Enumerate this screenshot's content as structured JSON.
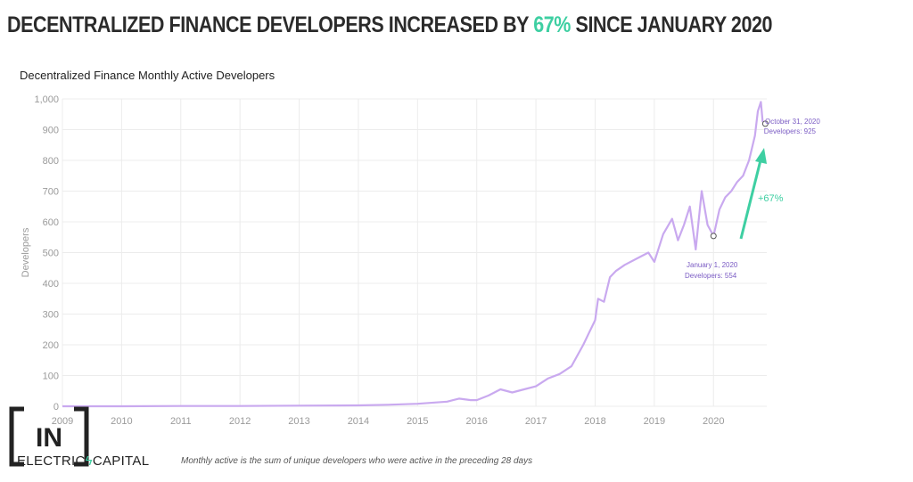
{
  "headline": {
    "prefix": "DECENTRALIZED FINANCE DEVELOPERS INCREASED BY ",
    "highlight": "67%",
    "suffix": " SINCE JANUARY 2020"
  },
  "colors": {
    "line": "#c9a9ef",
    "accent": "#3ecfa2",
    "annotation": "#7b5cc4"
  },
  "chart_data": {
    "type": "line",
    "title": "Decentralized Finance Monthly Active Developers",
    "xlabel": "",
    "ylabel": "Developers",
    "ylim": [
      0,
      1000
    ],
    "xlim": [
      2009,
      2020.9
    ],
    "grid": true,
    "y_ticks": [
      "0",
      "100",
      "200",
      "300",
      "400",
      "500",
      "600",
      "700",
      "800",
      "900",
      "1,000"
    ],
    "x_ticks": [
      "2009",
      "2010",
      "2011",
      "2012",
      "2013",
      "2014",
      "2015",
      "2016",
      "2017",
      "2018",
      "2019",
      "2020"
    ],
    "series": [
      {
        "x": [
          2009,
          2010,
          2011,
          2012,
          2013,
          2014,
          2014.5,
          2015,
          2015.5,
          2015.7,
          2015.9,
          2016,
          2016.2,
          2016.4,
          2016.6,
          2016.8,
          2017,
          2017.2,
          2017.4,
          2017.6,
          2017.8,
          2017.9,
          2018,
          2018.05,
          2018.15,
          2018.25,
          2018.35,
          2018.5,
          2018.7,
          2018.9,
          2019,
          2019.15,
          2019.3,
          2019.4,
          2019.5,
          2019.6,
          2019.7,
          2019.8,
          2019.9,
          2020,
          2020.1,
          2020.2,
          2020.3,
          2020.4,
          2020.5,
          2020.6,
          2020.7,
          2020.75,
          2020.8,
          2020.83
        ],
        "values": [
          0,
          0,
          1,
          1,
          2,
          3,
          5,
          8,
          15,
          25,
          20,
          20,
          35,
          55,
          45,
          55,
          65,
          90,
          105,
          130,
          200,
          240,
          280,
          350,
          340,
          420,
          440,
          460,
          480,
          500,
          470,
          560,
          610,
          540,
          590,
          650,
          510,
          700,
          590,
          554,
          640,
          680,
          700,
          730,
          750,
          800,
          880,
          960,
          990,
          925
        ]
      }
    ],
    "annotations": [
      {
        "label": "October 31, 2020",
        "value_label": "Developers: 925",
        "x": 2020.83,
        "y": 925
      },
      {
        "label": "January 1, 2020",
        "value_label": "Developers: 554",
        "x": 2020.0,
        "y": 554
      },
      {
        "label": "+67%"
      }
    ]
  },
  "footnote": "Monthly active is the sum of unique developers who were active in the preceding 28 days",
  "logo": {
    "mark": "IN",
    "text_prefix": "ELECTRIC",
    "bolt": "ϟ",
    "text_suffix": "CAPITAL"
  }
}
